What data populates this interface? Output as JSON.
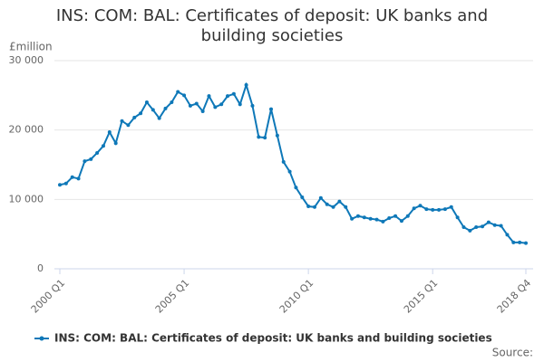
{
  "chart_data": {
    "type": "line",
    "title": "INS: COM: BAL: Certificates of deposit: UK banks and building societies",
    "y_label": "£million",
    "source": "Source:",
    "categories": [
      "2000 Q1",
      null,
      null,
      null,
      null,
      null,
      null,
      null,
      null,
      null,
      null,
      null,
      null,
      null,
      null,
      null,
      null,
      null,
      null,
      null,
      "2005 Q1",
      null,
      null,
      null,
      null,
      null,
      null,
      null,
      null,
      null,
      null,
      null,
      null,
      null,
      null,
      null,
      null,
      null,
      null,
      null,
      "2010 Q1",
      null,
      null,
      null,
      null,
      null,
      null,
      null,
      null,
      null,
      null,
      null,
      null,
      null,
      null,
      null,
      null,
      null,
      null,
      null,
      "2015 Q1",
      null,
      null,
      null,
      null,
      null,
      null,
      null,
      null,
      null,
      null,
      null,
      null,
      null,
      null,
      "2018 Q4"
    ],
    "series": [
      {
        "name": "INS: COM: BAL: Certificates of deposit: UK banks and building societies",
        "color": "#0e78b8",
        "values": [
          12100,
          12300,
          13200,
          13000,
          15500,
          15800,
          16700,
          17700,
          19700,
          18100,
          21300,
          20700,
          21800,
          22400,
          24000,
          22900,
          21700,
          23100,
          24000,
          25500,
          25000,
          23500,
          23800,
          22700,
          24900,
          23300,
          23700,
          24900,
          25200,
          23700,
          26500,
          23500,
          19000,
          18900,
          23000,
          19200,
          15400,
          14000,
          11700,
          10300,
          9000,
          8900,
          10200,
          9300,
          8900,
          9700,
          8900,
          7200,
          7600,
          7400,
          7200,
          7100,
          6800,
          7300,
          7600,
          6900,
          7600,
          8700,
          9100,
          8600,
          8500,
          8500,
          8600,
          8900,
          7400,
          6000,
          5500,
          6000,
          6100,
          6700,
          6300,
          6200,
          4900,
          3800,
          3800,
          3700
        ]
      }
    ],
    "ylim": [
      0,
      30000
    ],
    "yticks": [
      0,
      {
        "value": 10000,
        "label": "10 000"
      },
      {
        "value": 20000,
        "label": "20 000"
      },
      {
        "value": 30000,
        "label": "30 000"
      }
    ],
    "grid": true
  }
}
